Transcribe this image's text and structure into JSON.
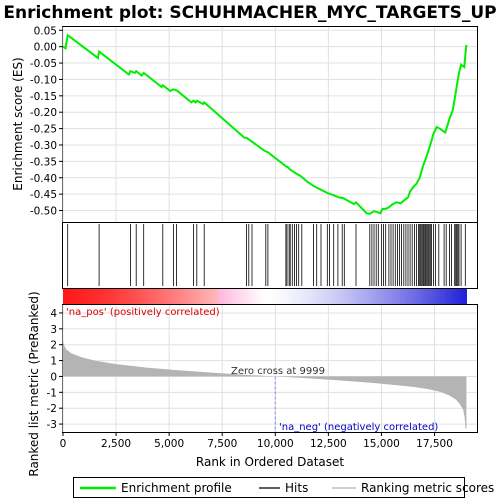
{
  "chart_data": {
    "type": "line",
    "title": "Enrichment plot: SCHUHMACHER_MYC_TARGETS_UP",
    "xlabel": "Rank in Ordered Dataset",
    "ylabel_top": "Enrichment score (ES)",
    "ylabel_bottom": "Ranked list metric (PreRanked)",
    "xlim": [
      0,
      19500
    ],
    "x_ticks": [
      0,
      2500,
      5000,
      7500,
      10000,
      12500,
      15000,
      17500
    ],
    "x_tick_labels": [
      "0",
      "2,500",
      "5,000",
      "7,500",
      "10,000",
      "12,500",
      "15,000",
      "17,500"
    ],
    "es_ylim": [
      -0.535,
      0.06
    ],
    "es_ticks": [
      0.05,
      0.0,
      -0.05,
      -0.1,
      -0.15,
      -0.2,
      -0.25,
      -0.3,
      -0.35,
      -0.4,
      -0.45,
      -0.5
    ],
    "es_tick_labels": [
      "0.05",
      "0.00",
      "-0.05",
      "-0.10",
      "-0.15",
      "-0.20",
      "-0.25",
      "-0.30",
      "-0.35",
      "-0.40",
      "-0.45",
      "-0.50"
    ],
    "metric_ylim": [
      -3.5,
      4.5
    ],
    "metric_ticks": [
      4,
      3,
      2,
      1,
      0,
      -1,
      -2,
      -3
    ],
    "metric_tick_labels": [
      "4",
      "3",
      "2",
      "1",
      "0",
      "-1",
      "-2",
      "-3"
    ],
    "es_curve": [
      [
        0,
        0.0
      ],
      [
        120,
        -0.005
      ],
      [
        220,
        0.035
      ],
      [
        1650,
        -0.035
      ],
      [
        1700,
        -0.015
      ],
      [
        3100,
        -0.085
      ],
      [
        3180,
        -0.075
      ],
      [
        3380,
        -0.08
      ],
      [
        3450,
        -0.075
      ],
      [
        3700,
        -0.088
      ],
      [
        3800,
        -0.08
      ],
      [
        4650,
        -0.123
      ],
      [
        4700,
        -0.118
      ],
      [
        5050,
        -0.135
      ],
      [
        5200,
        -0.13
      ],
      [
        5350,
        -0.133
      ],
      [
        6050,
        -0.17
      ],
      [
        6150,
        -0.165
      ],
      [
        6250,
        -0.17
      ],
      [
        6300,
        -0.165
      ],
      [
        6600,
        -0.175
      ],
      [
        6650,
        -0.17
      ],
      [
        8550,
        -0.278
      ],
      [
        8650,
        -0.278
      ],
      [
        8800,
        -0.285
      ],
      [
        9500,
        -0.318
      ],
      [
        9650,
        -0.322
      ],
      [
        10500,
        -0.365
      ],
      [
        10600,
        -0.368
      ],
      [
        10700,
        -0.375
      ],
      [
        11000,
        -0.388
      ],
      [
        11200,
        -0.395
      ],
      [
        11500,
        -0.412
      ],
      [
        11800,
        -0.425
      ],
      [
        12000,
        -0.432
      ],
      [
        12200,
        -0.438
      ],
      [
        12500,
        -0.448
      ],
      [
        12700,
        -0.452
      ],
      [
        13000,
        -0.46
      ],
      [
        13200,
        -0.462
      ],
      [
        13700,
        -0.48
      ],
      [
        13800,
        -0.475
      ],
      [
        14300,
        -0.508
      ],
      [
        14450,
        -0.51
      ],
      [
        14650,
        -0.502
      ],
      [
        14800,
        -0.505
      ],
      [
        14950,
        -0.508
      ],
      [
        15050,
        -0.495
      ],
      [
        15200,
        -0.495
      ],
      [
        15350,
        -0.49
      ],
      [
        15500,
        -0.482
      ],
      [
        15700,
        -0.475
      ],
      [
        15900,
        -0.478
      ],
      [
        16050,
        -0.47
      ],
      [
        16250,
        -0.46
      ],
      [
        16350,
        -0.442
      ],
      [
        16500,
        -0.428
      ],
      [
        16650,
        -0.418
      ],
      [
        16800,
        -0.4
      ],
      [
        16950,
        -0.365
      ],
      [
        17100,
        -0.34
      ],
      [
        17250,
        -0.31
      ],
      [
        17350,
        -0.288
      ],
      [
        17450,
        -0.265
      ],
      [
        17600,
        -0.245
      ],
      [
        17800,
        -0.252
      ],
      [
        18000,
        -0.262
      ],
      [
        18100,
        -0.242
      ],
      [
        18200,
        -0.22
      ],
      [
        18350,
        -0.195
      ],
      [
        18450,
        -0.16
      ],
      [
        18550,
        -0.12
      ],
      [
        18650,
        -0.08
      ],
      [
        18750,
        -0.055
      ],
      [
        18900,
        -0.062
      ],
      [
        18960,
        -0.02
      ],
      [
        19000,
        0.005
      ]
    ],
    "hits": [
      220,
      1700,
      3180,
      3450,
      3800,
      4700,
      5200,
      5350,
      6150,
      6300,
      6650,
      8650,
      8750,
      8900,
      9550,
      9650,
      10500,
      10550,
      10650,
      10700,
      10800,
      10900,
      11000,
      11100,
      11250,
      11800,
      11950,
      12150,
      12450,
      12550,
      12750,
      12950,
      13150,
      13250,
      13800,
      14450,
      14550,
      14650,
      14750,
      14850,
      15000,
      15100,
      15200,
      15350,
      15450,
      15550,
      15650,
      15750,
      15850,
      15950,
      16050,
      16150,
      16250,
      16350,
      16450,
      16550,
      16650,
      16750,
      16800,
      16850,
      16900,
      16950,
      17000,
      17050,
      17100,
      17150,
      17200,
      17250,
      17300,
      17350,
      17450,
      17550,
      17700,
      17950,
      18050,
      18200,
      18300,
      18450,
      18500,
      18550,
      18600,
      18650,
      18750,
      18950
    ],
    "metric_curve": [
      [
        0,
        2.3
      ],
      [
        40,
        2.0
      ],
      [
        150,
        1.7
      ],
      [
        400,
        1.45
      ],
      [
        900,
        1.2
      ],
      [
        1500,
        1.0
      ],
      [
        2500,
        0.78
      ],
      [
        4000,
        0.55
      ],
      [
        5500,
        0.38
      ],
      [
        7000,
        0.24
      ],
      [
        8500,
        0.11
      ],
      [
        9999,
        0.0
      ],
      [
        11500,
        -0.12
      ],
      [
        13000,
        -0.25
      ],
      [
        14500,
        -0.4
      ],
      [
        15500,
        -0.52
      ],
      [
        16500,
        -0.66
      ],
      [
        17200,
        -0.8
      ],
      [
        17800,
        -0.98
      ],
      [
        18200,
        -1.2
      ],
      [
        18500,
        -1.45
      ],
      [
        18700,
        -1.75
      ],
      [
        18850,
        -2.1
      ],
      [
        18920,
        -2.6
      ],
      [
        18960,
        -3.3
      ],
      [
        19000,
        -3.3
      ]
    ],
    "zero_cross_label": "Zero cross at 9999",
    "zero_cross_rank": 9999,
    "pos_label": "'na_pos' (positively correlated)",
    "neg_label": "'na_neg' (negatively correlated)",
    "legend": [
      "Enrichment profile",
      "Hits",
      "Ranking metric scores"
    ],
    "colors": {
      "es_line": "#00ee00",
      "hits": "#000000",
      "metric_fill": "#b4b4b4",
      "pos_text": "#dd0000",
      "neg_text": "#0000cc",
      "zero_line": "#8888ff",
      "grid": "#e0e0e0",
      "bar_red": "#ff1a1a",
      "bar_blue": "#2020d8"
    }
  }
}
